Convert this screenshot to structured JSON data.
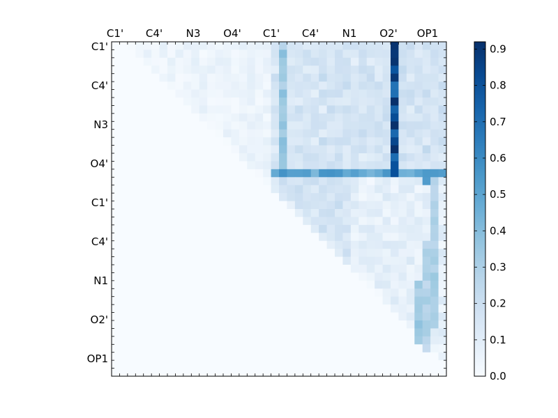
{
  "chart_data": {
    "type": "heatmap",
    "title": "",
    "xlabel": "",
    "ylabel": "",
    "x_tick_labels": [
      "C1'",
      "C4'",
      "N3",
      "O4'",
      "C1'",
      "C4'",
      "N1",
      "O2'",
      "OP1"
    ],
    "y_tick_labels": [
      "C1'",
      "C4'",
      "N3",
      "O4'",
      "C1'",
      "C4'",
      "N1",
      "O2'",
      "OP1"
    ],
    "colorbar": {
      "colormap": "Blues",
      "range": [
        0.0,
        0.92
      ],
      "tick_labels": [
        "0.0",
        "0.1",
        "0.2",
        "0.3",
        "0.4",
        "0.5",
        "0.6",
        "0.7",
        "0.8",
        "0.9"
      ],
      "tick_values": [
        0.0,
        0.1,
        0.2,
        0.3,
        0.4,
        0.5,
        0.6,
        0.7,
        0.8,
        0.9
      ]
    },
    "grid_size": 42,
    "upper_triangle_only": true,
    "highlights": [
      {
        "row_range": [
          0,
          15
        ],
        "col": 35,
        "value": 0.88
      },
      {
        "row_range": [
          0,
          15
        ],
        "col": 21,
        "value": 0.36
      },
      {
        "row": 16,
        "col_range": [
          20,
          41
        ],
        "value": 0.55
      },
      {
        "row": 16,
        "col": 35,
        "value": 0.8
      },
      {
        "row": 17,
        "col": 39,
        "value": 0.62
      },
      {
        "row_range": [
          17,
          35
        ],
        "col": 40,
        "value": 0.32
      },
      {
        "row_range": [
          25,
          40
        ],
        "col": 39,
        "value": 0.3
      },
      {
        "row_range": [
          30,
          39
        ],
        "col": 38,
        "value": 0.35
      },
      {
        "row": 39,
        "col": 39,
        "value": 0.45
      }
    ],
    "description_of_values": "Symmetric contact/correlation matrix shown as upper triangle; most cells low (0.0-0.2), strong column at index ~35 for upper rows, strong row at index ~16."
  }
}
